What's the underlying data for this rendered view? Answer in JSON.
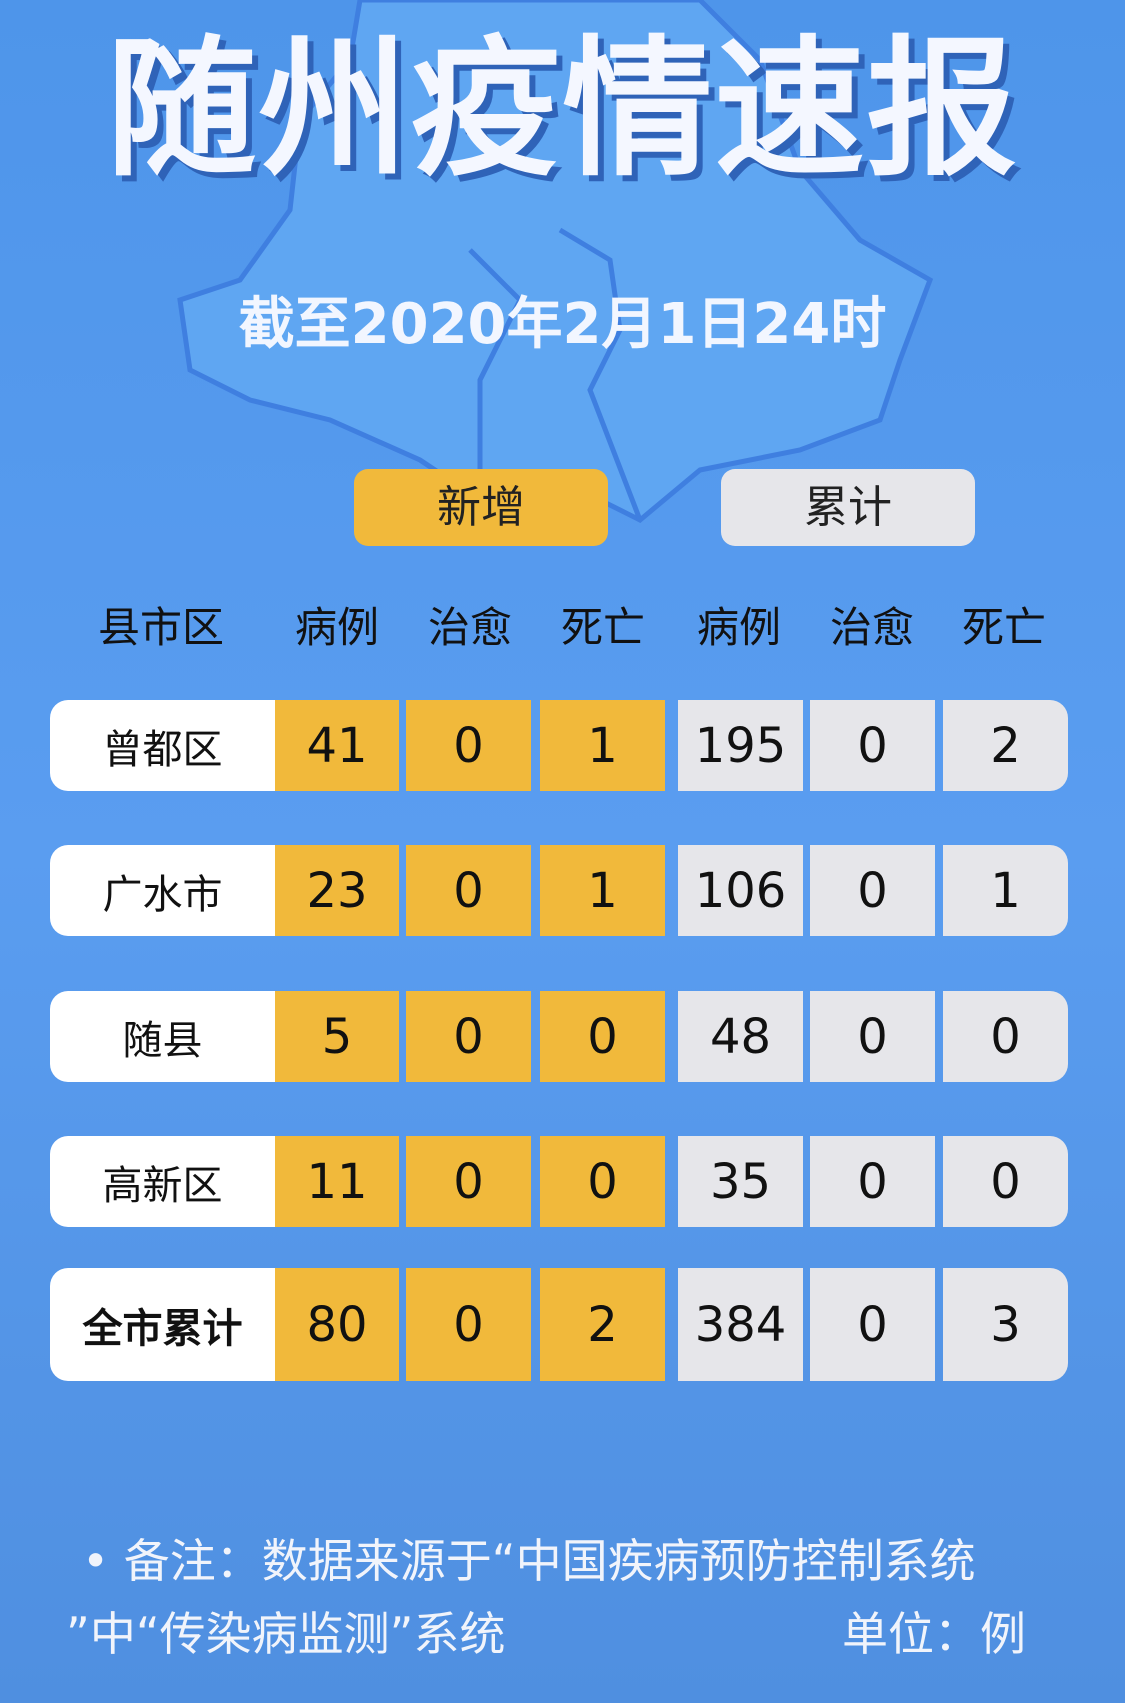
{
  "title": "随州疫情速报",
  "date": "截至2020年2月1日24时",
  "tabs": {
    "new": "新增",
    "total": "累计"
  },
  "colors": {
    "background": "#4e95ea",
    "new": "#f1b93b",
    "total": "#e6e6ea"
  },
  "headers": [
    "县市区",
    "病例",
    "治愈",
    "死亡",
    "病例",
    "治愈",
    "死亡"
  ],
  "rows": [
    {
      "name": "曾都区",
      "values": [
        "41",
        "0",
        "1",
        "195",
        "0",
        "2"
      ]
    },
    {
      "name": "广水市",
      "values": [
        "23",
        "0",
        "1",
        "106",
        "0",
        "1"
      ]
    },
    {
      "name": "随县",
      "values": [
        "5",
        "0",
        "0",
        "48",
        "0",
        "0"
      ]
    },
    {
      "name": "高新区",
      "values": [
        "11",
        "0",
        "0",
        "35",
        "0",
        "0"
      ]
    },
    {
      "name": "全市累计",
      "values": [
        "80",
        "0",
        "2",
        "384",
        "0",
        "3"
      ]
    }
  ],
  "footer": {
    "note_line1": "• 备注：数据来源于“中国疾病预防控制系统",
    "note_line2": "”中“传染病监测”系统",
    "unit": "单位：例"
  }
}
